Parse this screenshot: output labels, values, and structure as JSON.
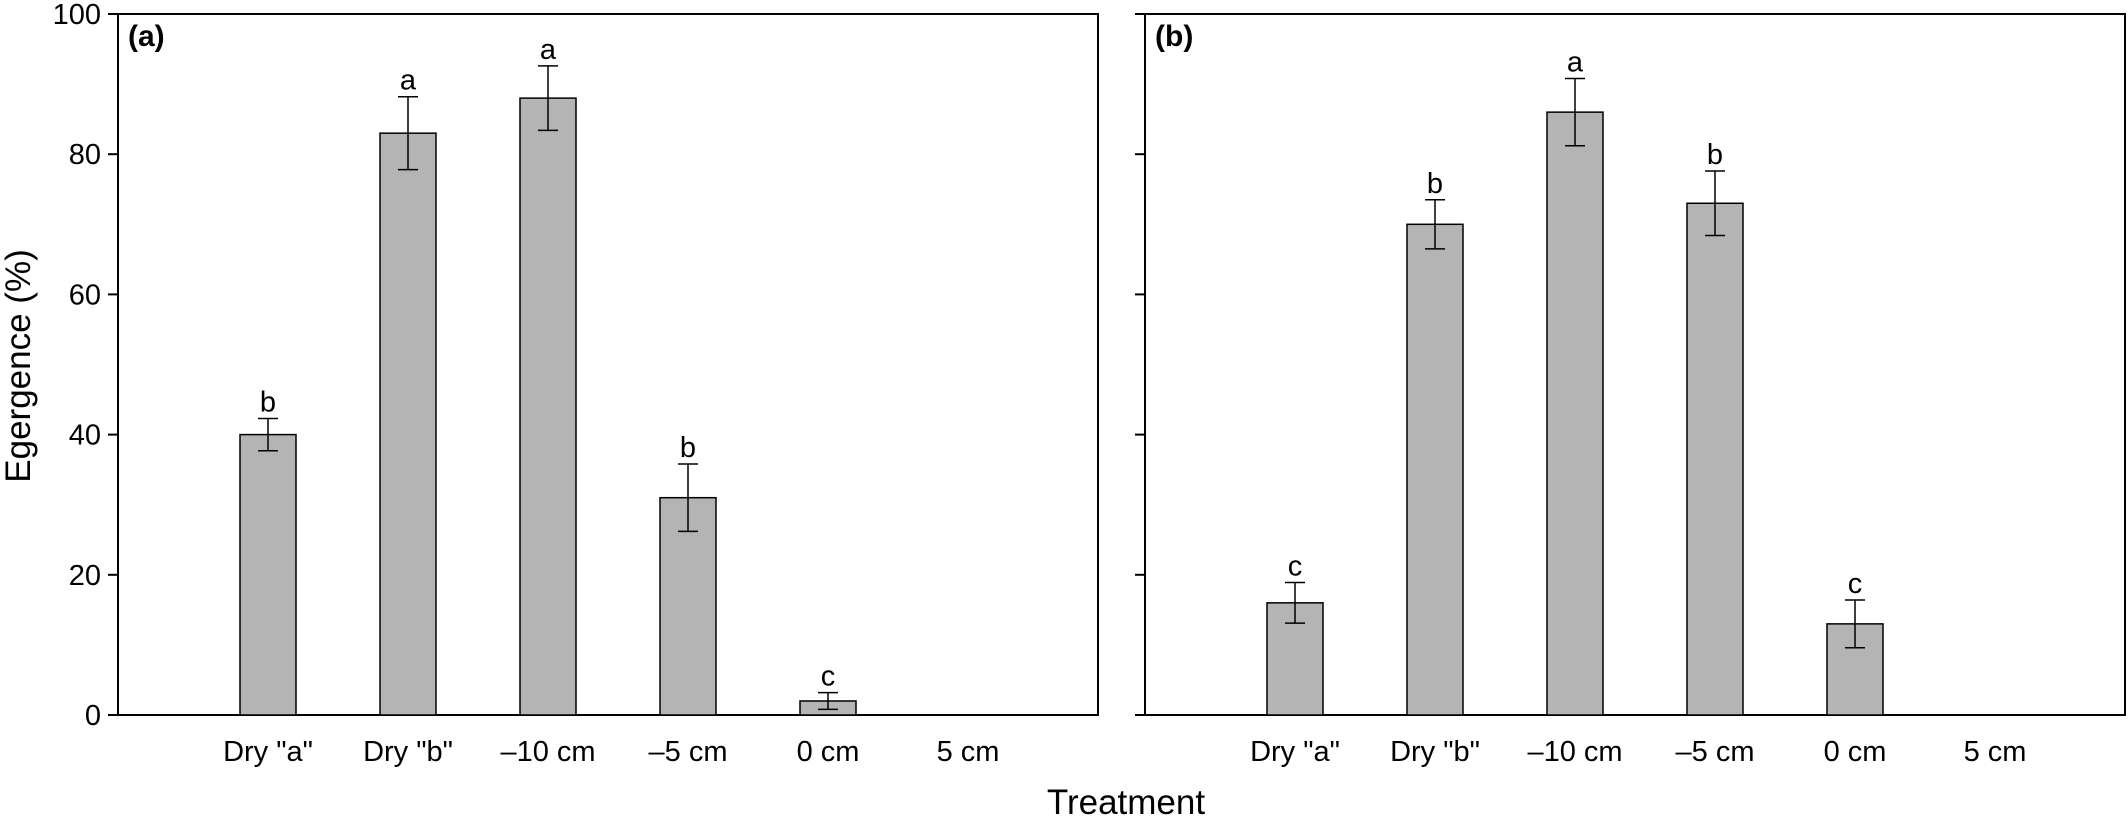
{
  "figure": {
    "ylabel": "Egergence (%)",
    "xlabel": "Treatment"
  },
  "chart_data": [
    {
      "type": "bar",
      "panel_label": "(a)",
      "categories": [
        "Dry \"a\"",
        "Dry \"b\"",
        "–10 cm",
        "–5 cm",
        "0 cm",
        "5 cm"
      ],
      "values": [
        40,
        83,
        88,
        31,
        2,
        0
      ],
      "error": [
        2.3,
        5.2,
        4.6,
        4.8,
        1.2,
        0
      ],
      "significance": [
        "b",
        "a",
        "a",
        "b",
        "c",
        ""
      ],
      "ylim": [
        0,
        100
      ],
      "yticks": [
        0,
        20,
        40,
        60,
        80,
        100
      ],
      "ylabel": "Egergence (%)",
      "xlabel": "Treatment",
      "bar_color": "#b4b4b4",
      "grid": false
    },
    {
      "type": "bar",
      "panel_label": "(b)",
      "categories": [
        "Dry \"a\"",
        "Dry \"b\"",
        "–10 cm",
        "–5 cm",
        "0 cm",
        "5 cm"
      ],
      "values": [
        16,
        70,
        86,
        73,
        13,
        0
      ],
      "error": [
        2.9,
        3.5,
        4.8,
        4.6,
        3.4,
        0
      ],
      "significance": [
        "c",
        "b",
        "a",
        "b",
        "c",
        ""
      ],
      "ylim": [
        0,
        100
      ],
      "yticks": [
        0,
        20,
        40,
        60,
        80,
        100
      ],
      "ylabel": "",
      "xlabel": "Treatment",
      "bar_color": "#b4b4b4",
      "grid": false
    }
  ]
}
